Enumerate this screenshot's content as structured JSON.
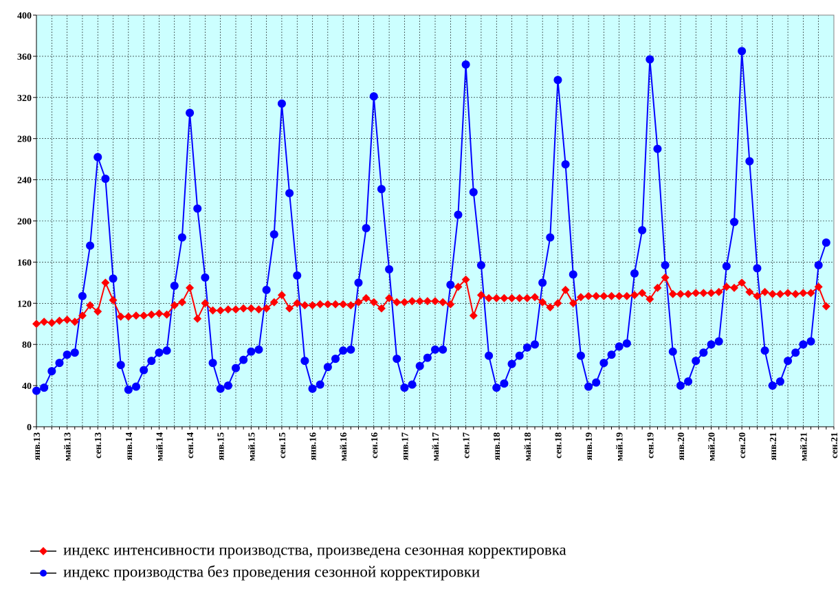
{
  "chart_data": {
    "type": "line",
    "categories": [
      "янв.13",
      null,
      null,
      null,
      "май.13",
      null,
      null,
      null,
      "сен.13",
      null,
      null,
      null,
      "янв.14",
      null,
      null,
      null,
      "май.14",
      null,
      null,
      null,
      "сен.14",
      null,
      null,
      null,
      "янв.15",
      null,
      null,
      null,
      "май.15",
      null,
      null,
      null,
      "сен.15",
      null,
      null,
      null,
      "янв.16",
      null,
      null,
      null,
      "май.16",
      null,
      null,
      null,
      "сен.16",
      null,
      null,
      null,
      "янв.17",
      null,
      null,
      null,
      "май.17",
      null,
      null,
      null,
      "сен.17",
      null,
      null,
      null,
      "янв.18",
      null,
      null,
      null,
      "май.18",
      null,
      null,
      null,
      "сен.18",
      null,
      null,
      null,
      "янв.19",
      null,
      null,
      null,
      "май.19",
      null,
      null,
      null,
      "сен.19",
      null,
      null,
      null,
      "янв.20",
      null,
      null,
      null,
      "май.20",
      null,
      null,
      null,
      "сен.20",
      null,
      null,
      null,
      "янв.21",
      null,
      null,
      null,
      "май.21",
      null,
      null,
      null,
      "сен.21"
    ],
    "series": [
      {
        "name": "индекс интенсивности производства, произведена сезонная корректировка",
        "color": "#ff0000",
        "marker": "diamond",
        "values": [
          100,
          102,
          101,
          103,
          104,
          102,
          108,
          118,
          112,
          140,
          123,
          107,
          107,
          108,
          108,
          109,
          110,
          109,
          118,
          121,
          135,
          105,
          120,
          113,
          113,
          114,
          114,
          115,
          115,
          114,
          115,
          121,
          128,
          115,
          120,
          118,
          118,
          119,
          119,
          119,
          119,
          118,
          121,
          125,
          121,
          115,
          125,
          121,
          121,
          122,
          122,
          122,
          122,
          121,
          119,
          136,
          143,
          108,
          128,
          125,
          125,
          125,
          125,
          125,
          125,
          126,
          121,
          116,
          120,
          133,
          120,
          126,
          127,
          127,
          127,
          127,
          127,
          127,
          128,
          130,
          124,
          135,
          145,
          129,
          129,
          129,
          130,
          130,
          130,
          131,
          136,
          135,
          140,
          131,
          127,
          131,
          129,
          129,
          130,
          129,
          130,
          130,
          136,
          117,
          null
        ]
      },
      {
        "name": "индекс производства без проведения сезонной корректировки",
        "color": "#0000ff",
        "marker": "circle",
        "values": [
          35,
          38,
          54,
          62,
          70,
          72,
          127,
          176,
          262,
          241,
          144,
          60,
          36,
          39,
          55,
          64,
          72,
          74,
          137,
          184,
          305,
          212,
          145,
          62,
          37,
          40,
          57,
          65,
          73,
          75,
          133,
          187,
          314,
          227,
          147,
          64,
          37,
          41,
          58,
          66,
          74,
          75,
          140,
          193,
          321,
          231,
          153,
          66,
          38,
          41,
          59,
          67,
          75,
          75,
          138,
          206,
          352,
          228,
          157,
          69,
          38,
          42,
          61,
          69,
          77,
          80,
          140,
          184,
          337,
          255,
          148,
          69,
          39,
          43,
          62,
          70,
          78,
          81,
          149,
          191,
          357,
          270,
          157,
          73,
          40,
          44,
          64,
          72,
          80,
          83,
          156,
          199,
          365,
          258,
          154,
          74,
          40,
          44,
          64,
          72,
          80,
          83,
          157,
          179,
          null
        ]
      }
    ],
    "ylim": [
      0,
      400
    ],
    "yticks": [
      0,
      40,
      80,
      120,
      160,
      200,
      240,
      280,
      320,
      360,
      400
    ],
    "grid": true,
    "background": "#ccffff"
  }
}
